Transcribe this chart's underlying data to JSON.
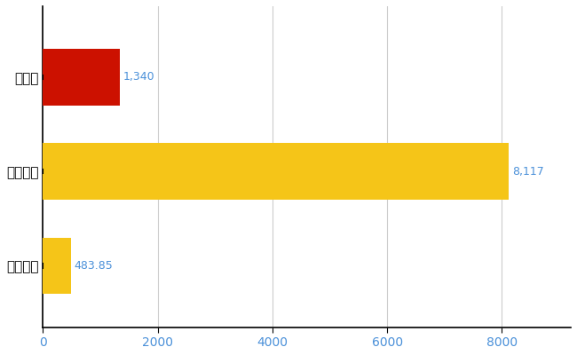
{
  "categories": [
    "千葉県",
    "全国最大",
    "全国平均"
  ],
  "values": [
    1340,
    8117,
    483.85
  ],
  "bar_colors": [
    "#cc1100",
    "#f5c518",
    "#f5c518"
  ],
  "value_labels": [
    "1,340",
    "8,117",
    "483.85"
  ],
  "xlim": [
    0,
    9200
  ],
  "xticks": [
    0,
    2000,
    4000,
    6000,
    8000
  ],
  "background_color": "#ffffff",
  "grid_color": "#cccccc",
  "label_color": "#4a90d9",
  "bar_height": 0.6,
  "figsize": [
    6.5,
    4.0
  ],
  "dpi": 100
}
